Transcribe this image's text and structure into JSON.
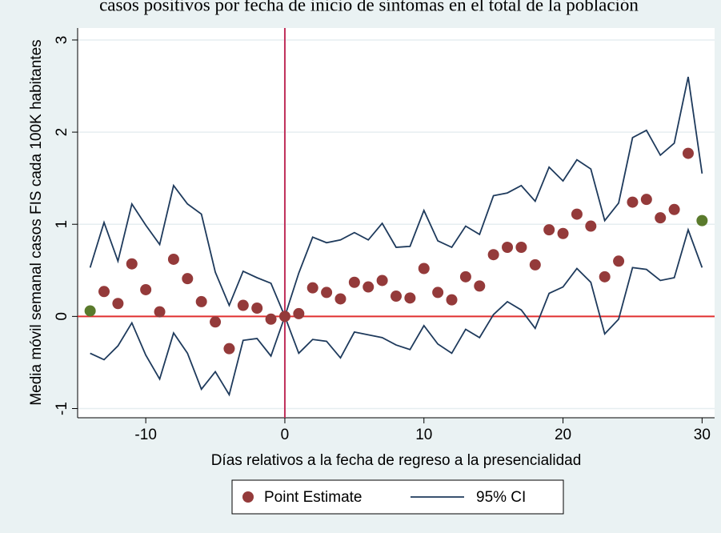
{
  "chart_data": {
    "type": "event-study",
    "title": "casos positivos por fecha de inicio de síntomas en el total de la población",
    "x_label": "Días relativos a la fecha de regreso a la presencialidad",
    "y_label": "Media móvil semanal casos FIS cada 100K habitantes",
    "x": [
      -14,
      -13,
      -12,
      -11,
      -10,
      -9,
      -8,
      -7,
      -6,
      -5,
      -4,
      -3,
      -2,
      -1,
      0,
      1,
      2,
      3,
      4,
      5,
      6,
      7,
      8,
      9,
      10,
      11,
      12,
      13,
      14,
      15,
      16,
      17,
      18,
      19,
      20,
      21,
      22,
      23,
      24,
      25,
      26,
      27,
      28,
      29,
      30
    ],
    "series": [
      {
        "name": "Point Estimate",
        "color": "#943a3a",
        "endpoint_color": "#5a7a2c",
        "values": [
          0.06,
          0.27,
          0.14,
          0.57,
          0.29,
          0.05,
          0.62,
          0.41,
          0.16,
          -0.06,
          -0.35,
          0.12,
          0.09,
          -0.03,
          0.0,
          0.03,
          0.31,
          0.26,
          0.19,
          0.37,
          0.32,
          0.39,
          0.22,
          0.2,
          0.52,
          0.26,
          0.18,
          0.43,
          0.33,
          0.67,
          0.75,
          0.75,
          0.56,
          0.94,
          0.9,
          1.11,
          0.98,
          0.43,
          0.6,
          1.24,
          1.27,
          1.07,
          1.16,
          1.77,
          1.04
        ]
      },
      {
        "name": "95% CI",
        "color": "#1e3a5c",
        "upper": [
          0.53,
          1.02,
          0.6,
          1.22,
          0.99,
          0.78,
          1.42,
          1.22,
          1.11,
          0.48,
          0.12,
          0.49,
          0.42,
          0.36,
          0.0,
          0.47,
          0.86,
          0.8,
          0.83,
          0.91,
          0.83,
          1.01,
          0.75,
          0.76,
          1.15,
          0.82,
          0.75,
          0.98,
          0.89,
          1.31,
          1.34,
          1.42,
          1.25,
          1.62,
          1.47,
          1.7,
          1.6,
          1.04,
          1.23,
          1.94,
          2.02,
          1.75,
          1.88,
          2.6,
          1.55
        ],
        "lower": [
          -0.4,
          -0.47,
          -0.32,
          -0.07,
          -0.42,
          -0.68,
          -0.18,
          -0.4,
          -0.79,
          -0.6,
          -0.85,
          -0.26,
          -0.24,
          -0.43,
          0.0,
          -0.4,
          -0.25,
          -0.27,
          -0.45,
          -0.17,
          -0.2,
          -0.23,
          -0.31,
          -0.36,
          -0.1,
          -0.3,
          -0.4,
          -0.14,
          -0.23,
          0.02,
          0.16,
          0.07,
          -0.13,
          0.25,
          0.32,
          0.52,
          0.37,
          -0.19,
          -0.03,
          0.53,
          0.51,
          0.39,
          0.42,
          0.94,
          0.53
        ]
      }
    ],
    "xlim": [
      -14.9,
      30.9
    ],
    "xticks": [
      -10,
      0,
      10,
      20,
      30
    ],
    "ylim": [
      -1.1,
      3.13
    ],
    "yticks": [
      -1,
      0,
      1,
      2,
      3
    ],
    "grid": true,
    "reference_lines": {
      "x": 0,
      "x_color": "#c0305a",
      "y": 0,
      "y_color": "#e03030"
    }
  }
}
